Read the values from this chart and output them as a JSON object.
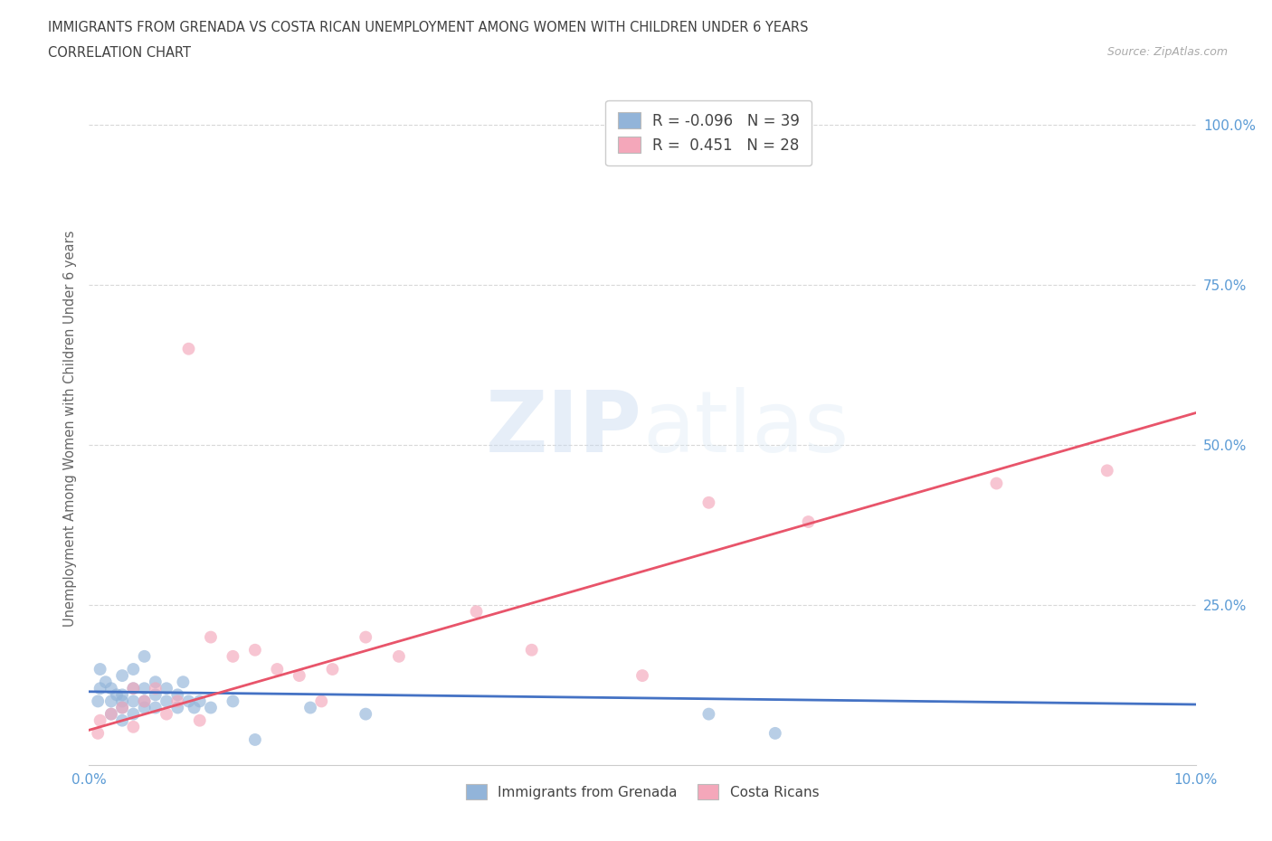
{
  "title_line1": "IMMIGRANTS FROM GRENADA VS COSTA RICAN UNEMPLOYMENT AMONG WOMEN WITH CHILDREN UNDER 6 YEARS",
  "title_line2": "CORRELATION CHART",
  "source": "Source: ZipAtlas.com",
  "ylabel": "Unemployment Among Women with Children Under 6 years",
  "xlim": [
    0.0,
    0.1
  ],
  "ylim": [
    0.0,
    1.05
  ],
  "blue_R": -0.096,
  "blue_N": 39,
  "pink_R": 0.451,
  "pink_N": 28,
  "blue_color": "#92b4d9",
  "pink_color": "#f4a7ba",
  "blue_line_color": "#4472c4",
  "pink_line_color": "#e8546a",
  "legend_label1": "Immigrants from Grenada",
  "legend_label2": "Costa Ricans",
  "blue_x": [
    0.0008,
    0.001,
    0.001,
    0.0015,
    0.002,
    0.002,
    0.002,
    0.0025,
    0.003,
    0.003,
    0.003,
    0.003,
    0.003,
    0.004,
    0.004,
    0.004,
    0.004,
    0.005,
    0.005,
    0.005,
    0.005,
    0.006,
    0.006,
    0.006,
    0.007,
    0.007,
    0.008,
    0.008,
    0.0085,
    0.009,
    0.0095,
    0.01,
    0.011,
    0.013,
    0.015,
    0.02,
    0.025,
    0.056,
    0.062
  ],
  "blue_y": [
    0.1,
    0.12,
    0.15,
    0.13,
    0.08,
    0.1,
    0.12,
    0.11,
    0.07,
    0.09,
    0.1,
    0.11,
    0.14,
    0.08,
    0.1,
    0.12,
    0.15,
    0.09,
    0.1,
    0.12,
    0.17,
    0.09,
    0.11,
    0.13,
    0.1,
    0.12,
    0.09,
    0.11,
    0.13,
    0.1,
    0.09,
    0.1,
    0.09,
    0.1,
    0.04,
    0.09,
    0.08,
    0.08,
    0.05
  ],
  "pink_x": [
    0.0008,
    0.001,
    0.002,
    0.003,
    0.004,
    0.004,
    0.005,
    0.006,
    0.007,
    0.008,
    0.009,
    0.01,
    0.011,
    0.013,
    0.015,
    0.017,
    0.019,
    0.021,
    0.022,
    0.025,
    0.028,
    0.035,
    0.04,
    0.05,
    0.056,
    0.065,
    0.082,
    0.092
  ],
  "pink_y": [
    0.05,
    0.07,
    0.08,
    0.09,
    0.06,
    0.12,
    0.1,
    0.12,
    0.08,
    0.1,
    0.65,
    0.07,
    0.2,
    0.17,
    0.18,
    0.15,
    0.14,
    0.1,
    0.15,
    0.2,
    0.17,
    0.24,
    0.18,
    0.14,
    0.41,
    0.38,
    0.44,
    0.46
  ],
  "blue_trend_x": [
    0.0,
    0.1
  ],
  "blue_trend_y": [
    0.115,
    0.095
  ],
  "pink_trend_x": [
    0.0,
    0.1
  ],
  "pink_trend_y": [
    0.055,
    0.55
  ]
}
